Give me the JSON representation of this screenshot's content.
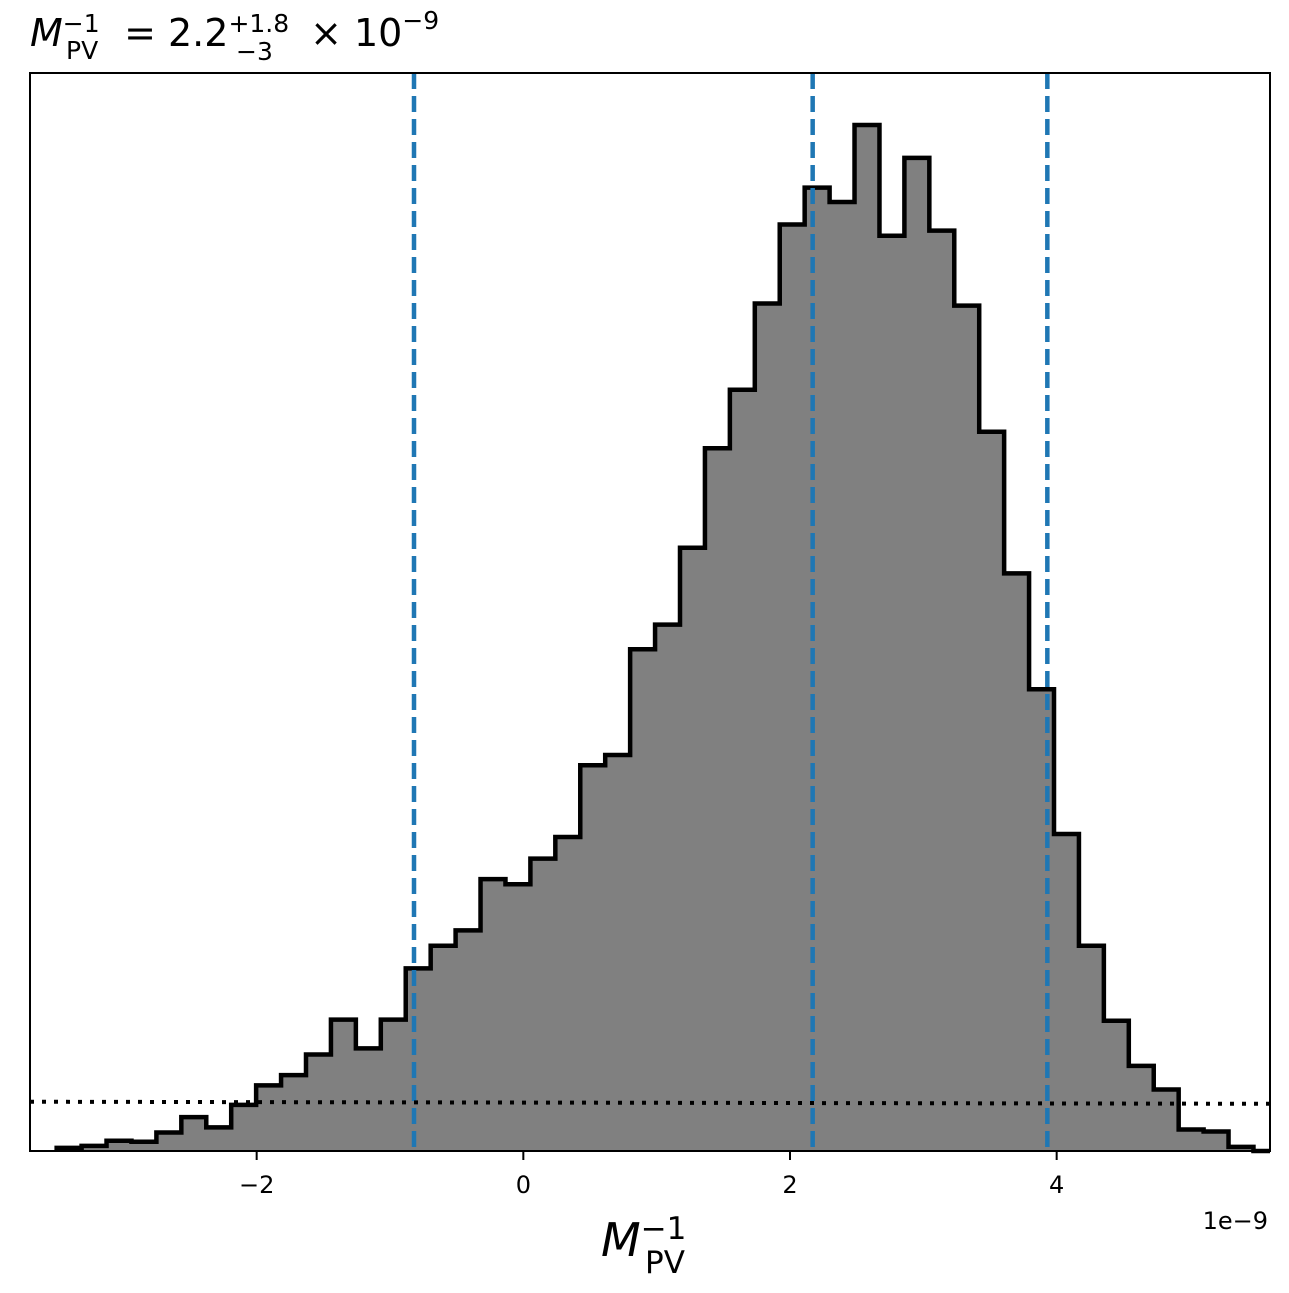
{
  "chart_data": {
    "type": "histogram",
    "title": {
      "symbol": "M",
      "sub": "PV",
      "sup": "−1",
      "equals": " = ",
      "value": "2.2",
      "plus": "+1.8",
      "minus": "−3",
      "times": " × 10",
      "exp": "−9"
    },
    "xlabel": {
      "symbol": "M",
      "sub": "PV",
      "sup": "−1"
    },
    "x_offset_label": "1e−9",
    "x_units": "1e-9",
    "xlim": [
      -3.7,
      5.6
    ],
    "ylim": [
      0,
      1.0
    ],
    "x_ticks": [
      {
        "value": -2,
        "label": "−2"
      },
      {
        "value": 0,
        "label": "0"
      },
      {
        "value": 2,
        "label": "2"
      },
      {
        "value": 4,
        "label": "4"
      }
    ],
    "bin_start": -3.5,
    "bin_width": 0.187,
    "counts": [
      0.003,
      0.005,
      0.01,
      0.009,
      0.018,
      0.033,
      0.023,
      0.045,
      0.064,
      0.074,
      0.094,
      0.128,
      0.1,
      0.128,
      0.178,
      0.2,
      0.215,
      0.265,
      0.26,
      0.285,
      0.306,
      0.376,
      0.386,
      0.489,
      0.513,
      0.588,
      0.685,
      0.742,
      0.826,
      0.903,
      0.939,
      0.925,
      1.0,
      0.892,
      0.968,
      0.897,
      0.824,
      0.701,
      0.563,
      0.45,
      0.309,
      0.2,
      0.127,
      0.083,
      0.06,
      0.021,
      0.019,
      0.004,
      0.0
    ],
    "hist_fill": "#808080",
    "hist_edge": "#000000",
    "vlines": [
      {
        "name": "lower",
        "x": -0.82
      },
      {
        "name": "median",
        "x": 2.17
      },
      {
        "name": "upper",
        "x": 3.93
      }
    ],
    "vline_color": "#1f77b4",
    "prior_line": {
      "style": "dotted",
      "x": [
        -3.7,
        5.6
      ],
      "y": [
        0.048,
        0.046
      ]
    },
    "grid": false,
    "legend": "none"
  }
}
